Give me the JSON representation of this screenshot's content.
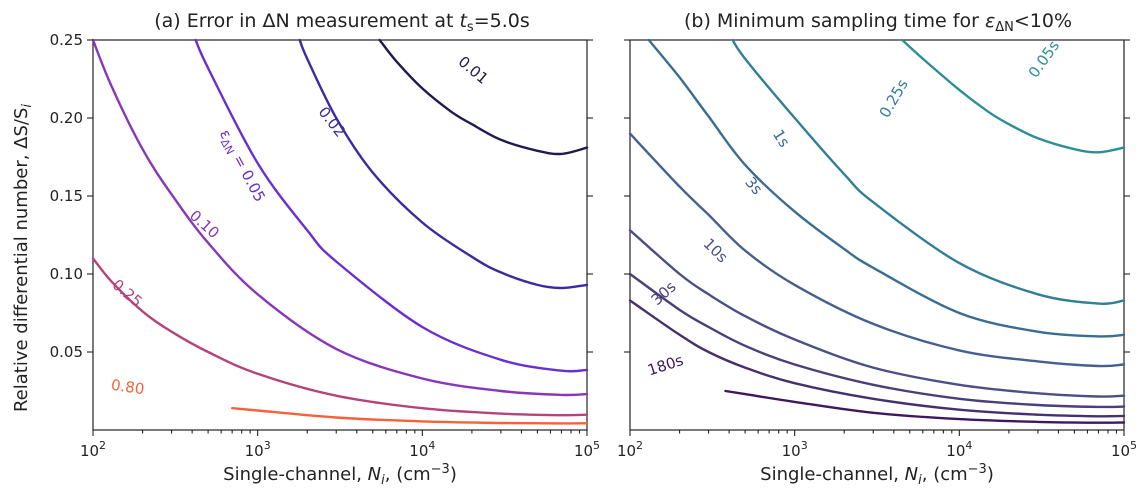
{
  "figure": {
    "ylabel": "Relative differential number, ΔS/S",
    "ylabel_sub": "i",
    "panels": [
      {
        "title_pre": "(a) Error in ΔN measurement at ",
        "title_var": "t",
        "title_sub": "s",
        "title_post": "=5.0s",
        "xlabel": "Single-channel, ",
        "xlabel_var": "N",
        "xlabel_sub": "i",
        "xlabel_unit": ", (cm",
        "xlabel_exp": "−3",
        "xlabel_close": ")"
      },
      {
        "title_pre": "(b) Minimum sampling time for ",
        "title_var": "ε",
        "title_sub": "ΔN",
        "title_post": "<10%",
        "xlabel": "Single-channel, ",
        "xlabel_var": "N",
        "xlabel_sub": "i",
        "xlabel_unit": ", (cm",
        "xlabel_exp": "−3",
        "xlabel_close": ")"
      }
    ],
    "xtick_base": "10",
    "xticks": [
      "2",
      "3",
      "4",
      "5"
    ],
    "yticks": [
      "0.05",
      "0.10",
      "0.15",
      "0.20",
      "0.25"
    ],
    "contour_label_prefix_a": "ε",
    "contour_label_prefix_a_sub": "ΔN",
    "contour_label_prefix_a_eq": " = 0.05"
  },
  "chart_data": [
    {
      "type": "line",
      "title": "(a) Error in ΔN measurement at ts=5.0s",
      "xlabel": "Single-channel, Ni, (cm−3)",
      "ylabel": "Relative differential number, ΔS/Si",
      "xscale": "log",
      "xlim": [
        100,
        100000
      ],
      "ylim": [
        0,
        0.25
      ],
      "grid": false,
      "series": [
        {
          "name": "0.80",
          "color": "#f7613a",
          "x": [
            700,
            1000,
            3000,
            10000,
            30000,
            70000,
            100000
          ],
          "y": [
            0.014,
            0.0125,
            0.008,
            0.0055,
            0.0045,
            0.0042,
            0.0043
          ]
        },
        {
          "name": "0.25",
          "color": "#b5447a",
          "x": [
            100,
            130,
            200,
            300,
            500,
            1000,
            3000,
            10000,
            30000,
            70000,
            100000
          ],
          "y": [
            0.11,
            0.095,
            0.076,
            0.063,
            0.05,
            0.036,
            0.022,
            0.014,
            0.0105,
            0.0095,
            0.0098
          ]
        },
        {
          "name": "0.10",
          "color": "#8a36b8",
          "x": [
            100,
            130,
            200,
            300,
            500,
            1000,
            3000,
            10000,
            30000,
            70000,
            100000
          ],
          "y": [
            0.25,
            0.22,
            0.18,
            0.151,
            0.12,
            0.087,
            0.052,
            0.033,
            0.025,
            0.0225,
            0.023
          ]
        },
        {
          "name": "0.05",
          "color": "#6a2fd0",
          "x": [
            420,
            500,
            1000,
            2000,
            3000,
            10000,
            30000,
            70000,
            100000
          ],
          "y": [
            0.25,
            0.232,
            0.171,
            0.128,
            0.108,
            0.066,
            0.045,
            0.038,
            0.0385
          ]
        },
        {
          "name": "0.02",
          "color": "#3d2aa0",
          "x": [
            1800,
            2000,
            3000,
            5000,
            10000,
            20000,
            30000,
            50000,
            70000,
            100000
          ],
          "y": [
            0.25,
            0.238,
            0.2,
            0.165,
            0.133,
            0.111,
            0.101,
            0.093,
            0.091,
            0.093
          ]
        },
        {
          "name": "0.01",
          "color": "#1f1a4f",
          "x": [
            5500,
            7000,
            10000,
            15000,
            20000,
            30000,
            50000,
            70000,
            100000
          ],
          "y": [
            0.25,
            0.236,
            0.219,
            0.204,
            0.196,
            0.186,
            0.179,
            0.177,
            0.181
          ]
        }
      ]
    },
    {
      "type": "line",
      "title": "(b) Minimum sampling time for εΔN<10%",
      "xlabel": "Single-channel, Ni, (cm−3)",
      "ylabel": "",
      "xscale": "log",
      "xlim": [
        100,
        100000
      ],
      "ylim": [
        0,
        0.25
      ],
      "grid": false,
      "series": [
        {
          "name": "180s",
          "color": "#3e1760",
          "x": [
            380,
            500,
            1000,
            3000,
            10000,
            30000,
            70000,
            100000
          ],
          "y": [
            0.025,
            0.023,
            0.018,
            0.011,
            0.007,
            0.0052,
            0.0047,
            0.0048
          ]
        },
        {
          "name": "",
          "color": "#45306f",
          "x": [
            100,
            200,
            300,
            500,
            1000,
            3000,
            10000,
            30000,
            70000,
            100000
          ],
          "y": [
            0.083,
            0.061,
            0.05,
            0.04,
            0.03,
            0.02,
            0.013,
            0.0098,
            0.0088,
            0.009
          ]
        },
        {
          "name": "30s",
          "color": "#4b3e7a",
          "x": [
            100,
            200,
            300,
            500,
            1000,
            3000,
            10000,
            30000,
            70000,
            100000
          ],
          "y": [
            0.1,
            0.077,
            0.066,
            0.054,
            0.042,
            0.029,
            0.02,
            0.016,
            0.0148,
            0.015
          ]
        },
        {
          "name": "10s",
          "color": "#4c4f86",
          "x": [
            100,
            200,
            300,
            500,
            1000,
            3000,
            10000,
            30000,
            70000,
            100000
          ],
          "y": [
            0.128,
            0.1,
            0.087,
            0.073,
            0.058,
            0.04,
            0.029,
            0.0235,
            0.0215,
            0.022
          ]
        },
        {
          "name": "3s",
          "color": "#44608f",
          "x": [
            100,
            200,
            300,
            500,
            1000,
            3000,
            10000,
            30000,
            70000,
            100000
          ],
          "y": [
            0.19,
            0.156,
            0.138,
            0.115,
            0.093,
            0.068,
            0.051,
            0.044,
            0.041,
            0.042
          ]
        },
        {
          "name": "1s",
          "color": "#3a6d94",
          "x": [
            130,
            200,
            300,
            500,
            1000,
            2000,
            3000,
            10000,
            30000,
            70000,
            100000
          ],
          "y": [
            0.25,
            0.226,
            0.201,
            0.17,
            0.14,
            0.116,
            0.104,
            0.075,
            0.063,
            0.06,
            0.061
          ]
        },
        {
          "name": "0.25s",
          "color": "#317f97",
          "x": [
            420,
            500,
            1000,
            2000,
            3000,
            10000,
            30000,
            70000,
            100000
          ],
          "y": [
            0.25,
            0.238,
            0.2,
            0.164,
            0.146,
            0.107,
            0.087,
            0.081,
            0.083
          ]
        },
        {
          "name": "0.05s",
          "color": "#2b8f93",
          "x": [
            4500,
            6000,
            10000,
            15000,
            20000,
            30000,
            50000,
            70000,
            100000
          ],
          "y": [
            0.25,
            0.238,
            0.218,
            0.204,
            0.196,
            0.187,
            0.18,
            0.178,
            0.181
          ]
        }
      ]
    }
  ]
}
